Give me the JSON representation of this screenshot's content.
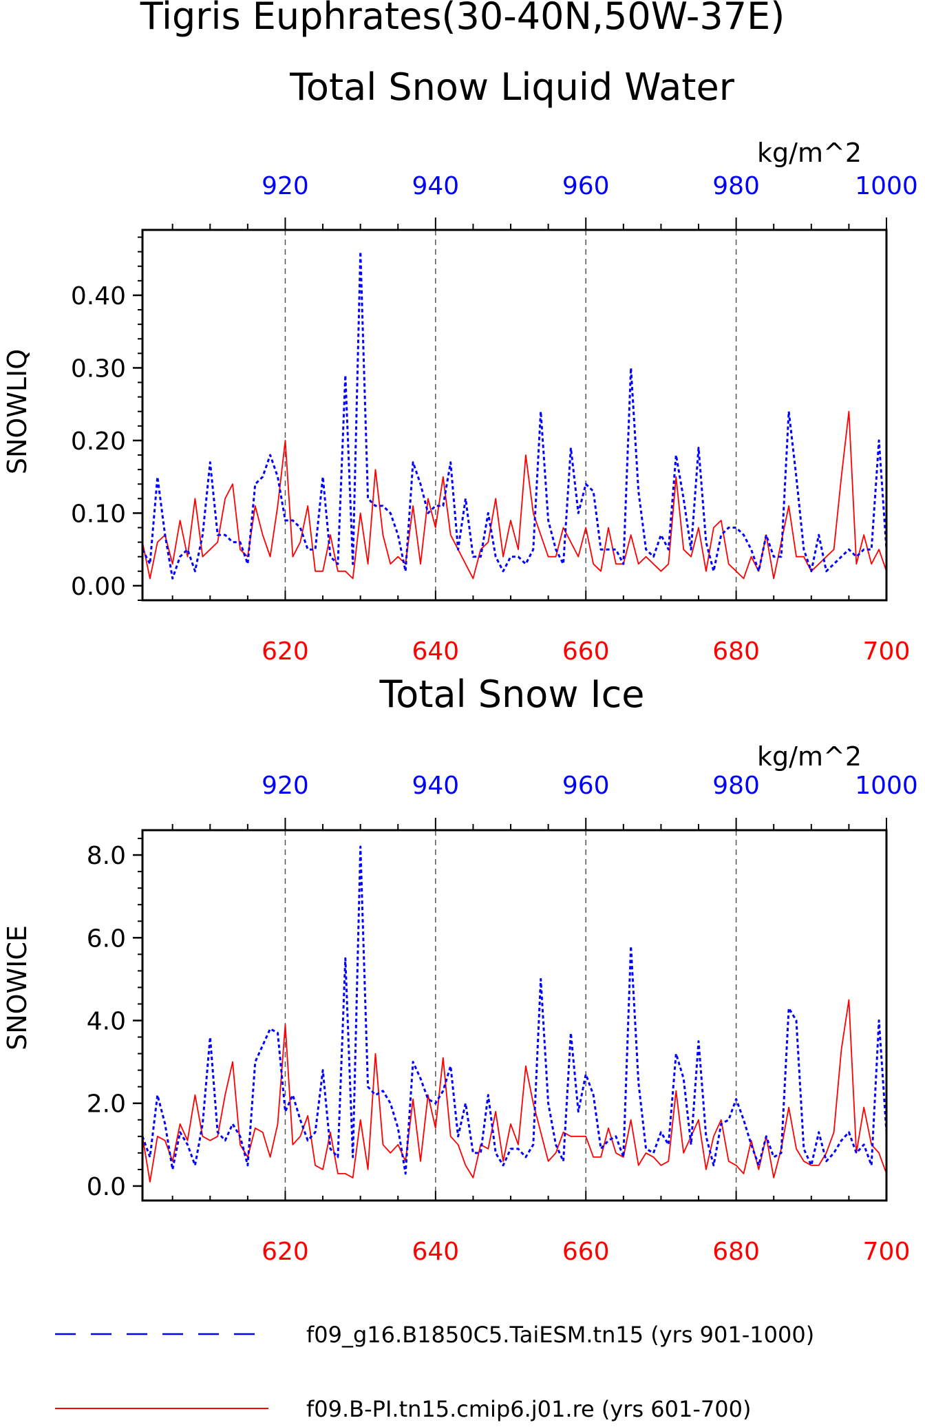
{
  "figure": {
    "title_line1": "Tigris Euphrates(30-40N,50W-37E)",
    "colors": {
      "series_blue": "#0000ff",
      "series_red": "#ff0000",
      "axis": "#000000",
      "grid": "#555555"
    },
    "legend": [
      {
        "label": "f09_g16.B1850C5.TaiESM.tn15 (yrs 901-1000)",
        "color": "#0000ff",
        "style": "dashed"
      },
      {
        "label": "f09.B-PI.tn15.cmip6.j01.re (yrs 601-700)",
        "color": "#ff0000",
        "style": "solid"
      }
    ]
  },
  "chart_data": [
    {
      "type": "line",
      "title": "Total Snow Liquid Water",
      "units_label": "kg/m^2",
      "ylabel": "SNOWLIQ",
      "ylim": [
        -0.02,
        0.49
      ],
      "yticks": [
        0.0,
        0.1,
        0.2,
        0.3,
        0.4
      ],
      "ytick_labels": [
        "0.00",
        "0.10",
        "0.20",
        "0.30",
        "0.40"
      ],
      "y_minor_step": 0.02,
      "bottom_axis": {
        "range": [
          601,
          700
        ],
        "ticks": [
          620,
          640,
          660,
          680,
          700
        ],
        "color": "#ff0000"
      },
      "top_axis": {
        "range": [
          901,
          1000
        ],
        "ticks": [
          920,
          940,
          960,
          980,
          1000
        ],
        "color": "#0000ff"
      },
      "grid": "vertical dashed at major ticks",
      "series": [
        {
          "axis": "top",
          "style": "dashed",
          "color": "#0000ff",
          "x": [
            901,
            902,
            903,
            904,
            905,
            906,
            907,
            908,
            909,
            910,
            911,
            912,
            913,
            914,
            915,
            916,
            917,
            918,
            919,
            920,
            921,
            922,
            923,
            924,
            925,
            926,
            927,
            928,
            929,
            930,
            931,
            932,
            933,
            934,
            935,
            936,
            937,
            938,
            939,
            940,
            941,
            942,
            943,
            944,
            945,
            946,
            947,
            948,
            949,
            950,
            951,
            952,
            953,
            954,
            955,
            956,
            957,
            958,
            959,
            960,
            961,
            962,
            963,
            964,
            965,
            966,
            967,
            968,
            969,
            970,
            971,
            972,
            973,
            974,
            975,
            976,
            977,
            978,
            979,
            980,
            981,
            982,
            983,
            984,
            985,
            986,
            987,
            988,
            989,
            990,
            991,
            992,
            993,
            994,
            995,
            996,
            997,
            998,
            999,
            1000
          ],
          "values": [
            0.05,
            0.03,
            0.15,
            0.07,
            0.01,
            0.04,
            0.05,
            0.02,
            0.07,
            0.17,
            0.07,
            0.07,
            0.06,
            0.06,
            0.03,
            0.14,
            0.15,
            0.18,
            0.15,
            0.09,
            0.09,
            0.08,
            0.05,
            0.05,
            0.15,
            0.04,
            0.03,
            0.29,
            0.03,
            0.46,
            0.12,
            0.11,
            0.11,
            0.1,
            0.07,
            0.02,
            0.17,
            0.14,
            0.1,
            0.11,
            0.11,
            0.17,
            0.05,
            0.12,
            0.04,
            0.04,
            0.1,
            0.04,
            0.02,
            0.04,
            0.04,
            0.03,
            0.05,
            0.24,
            0.09,
            0.05,
            0.03,
            0.19,
            0.1,
            0.14,
            0.13,
            0.05,
            0.05,
            0.05,
            0.03,
            0.3,
            0.13,
            0.05,
            0.04,
            0.07,
            0.05,
            0.18,
            0.12,
            0.05,
            0.19,
            0.06,
            0.02,
            0.07,
            0.08,
            0.08,
            0.07,
            0.05,
            0.02,
            0.07,
            0.04,
            0.04,
            0.24,
            0.15,
            0.05,
            0.02,
            0.07,
            0.02,
            0.03,
            0.04,
            0.05,
            0.04,
            0.05,
            0.05,
            0.2,
            0.05
          ]
        },
        {
          "axis": "bottom",
          "style": "solid",
          "color": "#ff0000",
          "x": [
            601,
            602,
            603,
            604,
            605,
            606,
            607,
            608,
            609,
            610,
            611,
            612,
            613,
            614,
            615,
            616,
            617,
            618,
            619,
            620,
            621,
            622,
            623,
            624,
            625,
            626,
            627,
            628,
            629,
            630,
            631,
            632,
            633,
            634,
            635,
            636,
            637,
            638,
            639,
            640,
            641,
            642,
            643,
            644,
            645,
            646,
            647,
            648,
            649,
            650,
            651,
            652,
            653,
            654,
            655,
            656,
            657,
            658,
            659,
            660,
            661,
            662,
            663,
            664,
            665,
            666,
            667,
            668,
            669,
            670,
            671,
            672,
            673,
            674,
            675,
            676,
            677,
            678,
            679,
            680,
            681,
            682,
            683,
            684,
            685,
            686,
            687,
            688,
            689,
            690,
            691,
            692,
            693,
            694,
            695,
            696,
            697,
            698,
            699,
            700
          ],
          "values": [
            0.06,
            0.01,
            0.06,
            0.07,
            0.03,
            0.09,
            0.04,
            0.12,
            0.04,
            0.05,
            0.06,
            0.12,
            0.14,
            0.05,
            0.04,
            0.11,
            0.07,
            0.04,
            0.11,
            0.2,
            0.04,
            0.06,
            0.11,
            0.02,
            0.02,
            0.07,
            0.02,
            0.02,
            0.01,
            0.1,
            0.03,
            0.16,
            0.07,
            0.03,
            0.04,
            0.03,
            0.11,
            0.03,
            0.12,
            0.08,
            0.15,
            0.07,
            0.05,
            0.03,
            0.01,
            0.05,
            0.06,
            0.12,
            0.04,
            0.09,
            0.05,
            0.18,
            0.1,
            0.07,
            0.04,
            0.04,
            0.08,
            0.06,
            0.04,
            0.08,
            0.03,
            0.02,
            0.08,
            0.03,
            0.03,
            0.07,
            0.03,
            0.04,
            0.03,
            0.02,
            0.03,
            0.15,
            0.05,
            0.04,
            0.08,
            0.02,
            0.08,
            0.09,
            0.03,
            0.02,
            0.01,
            0.04,
            0.02,
            0.07,
            0.01,
            0.06,
            0.11,
            0.04,
            0.04,
            0.02,
            0.03,
            0.04,
            0.05,
            0.15,
            0.24,
            0.03,
            0.07,
            0.03,
            0.05,
            0.02
          ]
        }
      ]
    },
    {
      "type": "line",
      "title": "Total Snow Ice",
      "units_label": "kg/m^2",
      "ylabel": "SNOWICE",
      "ylim": [
        -0.35,
        8.6
      ],
      "yticks": [
        0.0,
        2.0,
        4.0,
        6.0,
        8.0
      ],
      "ytick_labels": [
        "0.0",
        "2.0",
        "4.0",
        "6.0",
        "8.0"
      ],
      "y_minor_step": 0.4,
      "bottom_axis": {
        "range": [
          601,
          700
        ],
        "ticks": [
          620,
          640,
          660,
          680,
          700
        ],
        "color": "#ff0000"
      },
      "top_axis": {
        "range": [
          901,
          1000
        ],
        "ticks": [
          920,
          940,
          960,
          980,
          1000
        ],
        "color": "#0000ff"
      },
      "grid": "vertical dashed at major ticks",
      "series": [
        {
          "axis": "top",
          "style": "dashed",
          "color": "#0000ff",
          "x": [
            901,
            902,
            903,
            904,
            905,
            906,
            907,
            908,
            909,
            910,
            911,
            912,
            913,
            914,
            915,
            916,
            917,
            918,
            919,
            920,
            921,
            922,
            923,
            924,
            925,
            926,
            927,
            928,
            929,
            930,
            931,
            932,
            933,
            934,
            935,
            936,
            937,
            938,
            939,
            940,
            941,
            942,
            943,
            944,
            945,
            946,
            947,
            948,
            949,
            950,
            951,
            952,
            953,
            954,
            955,
            956,
            957,
            958,
            959,
            960,
            961,
            962,
            963,
            964,
            965,
            966,
            967,
            968,
            969,
            970,
            971,
            972,
            973,
            974,
            975,
            976,
            977,
            978,
            979,
            980,
            981,
            982,
            983,
            984,
            985,
            986,
            987,
            988,
            989,
            990,
            991,
            992,
            993,
            994,
            995,
            996,
            997,
            998,
            999,
            1000
          ],
          "values": [
            1.2,
            0.7,
            2.2,
            1.5,
            0.4,
            1.3,
            1.0,
            0.5,
            1.5,
            3.6,
            1.3,
            1.1,
            1.5,
            1.2,
            0.5,
            3.0,
            3.4,
            3.8,
            3.7,
            1.8,
            2.2,
            1.6,
            1.1,
            1.3,
            2.8,
            0.9,
            0.7,
            5.5,
            0.7,
            8.2,
            2.4,
            2.2,
            2.3,
            2.0,
            1.4,
            0.3,
            3.0,
            2.6,
            2.1,
            2.0,
            2.3,
            2.9,
            1.2,
            2.0,
            0.8,
            0.8,
            2.2,
            0.8,
            0.5,
            0.9,
            0.9,
            0.7,
            1.0,
            5.0,
            2.0,
            1.0,
            0.6,
            3.7,
            1.8,
            2.7,
            2.2,
            0.9,
            1.1,
            1.2,
            0.7,
            5.8,
            2.5,
            0.9,
            0.8,
            1.3,
            1.0,
            3.2,
            2.6,
            1.0,
            3.5,
            1.2,
            0.5,
            1.5,
            1.6,
            2.1,
            1.6,
            1.0,
            0.5,
            1.2,
            0.7,
            0.8,
            4.3,
            4.0,
            0.9,
            0.5,
            1.3,
            0.6,
            0.8,
            1.1,
            1.3,
            0.8,
            1.0,
            0.5,
            4.0,
            1.3
          ]
        },
        {
          "axis": "bottom",
          "style": "solid",
          "color": "#ff0000",
          "x": [
            601,
            602,
            603,
            604,
            605,
            606,
            607,
            608,
            609,
            610,
            611,
            612,
            613,
            614,
            615,
            616,
            617,
            618,
            619,
            620,
            621,
            622,
            623,
            624,
            625,
            626,
            627,
            628,
            629,
            630,
            631,
            632,
            633,
            634,
            635,
            636,
            637,
            638,
            639,
            640,
            641,
            642,
            643,
            644,
            645,
            646,
            647,
            648,
            649,
            650,
            651,
            652,
            653,
            654,
            655,
            656,
            657,
            658,
            659,
            660,
            661,
            662,
            663,
            664,
            665,
            666,
            667,
            668,
            669,
            670,
            671,
            672,
            673,
            674,
            675,
            676,
            677,
            678,
            679,
            680,
            681,
            682,
            683,
            684,
            685,
            686,
            687,
            688,
            689,
            690,
            691,
            692,
            693,
            694,
            695,
            696,
            697,
            698,
            699,
            700
          ],
          "values": [
            1.2,
            0.1,
            1.2,
            1.1,
            0.6,
            1.5,
            1.1,
            2.2,
            1.2,
            1.1,
            1.2,
            2.2,
            3.0,
            1.0,
            0.7,
            1.4,
            1.3,
            0.7,
            1.5,
            3.9,
            1.0,
            1.2,
            1.7,
            0.5,
            0.4,
            1.3,
            0.3,
            0.3,
            0.2,
            1.6,
            0.4,
            3.2,
            1.0,
            0.8,
            1.0,
            0.6,
            2.1,
            0.6,
            2.2,
            1.4,
            3.1,
            1.2,
            1.0,
            0.5,
            0.2,
            1.0,
            0.9,
            1.8,
            0.6,
            1.5,
            1.0,
            2.9,
            2.0,
            1.3,
            0.6,
            0.8,
            1.3,
            1.2,
            1.2,
            1.2,
            0.7,
            0.7,
            1.4,
            0.8,
            0.7,
            1.6,
            0.5,
            0.8,
            0.7,
            0.5,
            0.6,
            2.3,
            0.8,
            1.2,
            1.6,
            0.4,
            1.2,
            1.6,
            0.6,
            0.5,
            0.3,
            1.1,
            0.4,
            1.2,
            0.2,
            0.9,
            1.9,
            0.9,
            0.6,
            0.5,
            0.5,
            0.8,
            1.3,
            3.3,
            4.5,
            0.8,
            1.9,
            1.0,
            0.8,
            0.3
          ]
        }
      ]
    }
  ]
}
